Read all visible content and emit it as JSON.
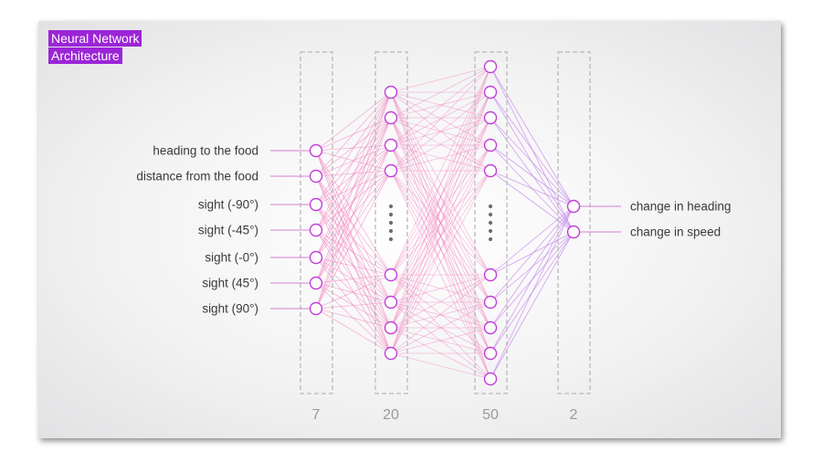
{
  "title": {
    "line1": "Neural Network",
    "line2": "Architecture"
  },
  "inputs": [
    "heading to the food",
    "distance from the food",
    "sight (-90°)",
    "sight (-45°)",
    "sight (-0°)",
    "sight (45°)",
    "sight (90°)"
  ],
  "outputs": [
    "change in heading",
    "change in speed"
  ],
  "layer_sizes": [
    "7",
    "20",
    "50",
    "2"
  ],
  "colors": {
    "title_bg": "#9b25d6",
    "node_stroke": "#c13fd9",
    "edge_pink": "#f07ab8",
    "edge_purple": "#c07ae8",
    "edge_line": "#d67fd0",
    "box_stroke": "#b9b9b9",
    "ellipsis_dots": "#6e6a78"
  }
}
